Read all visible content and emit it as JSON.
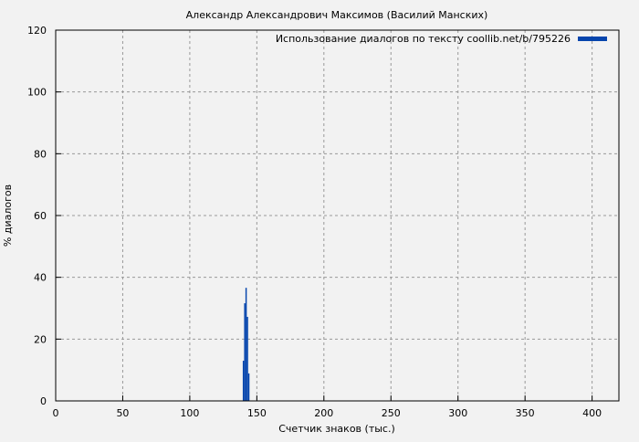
{
  "chart_data": {
    "type": "bar",
    "title": "Александр Александрович Максимов (Василий Манских)",
    "xlabel": "Счетчик знаков (тыс.)",
    "ylabel": "% диалогов",
    "xlim": [
      0,
      420
    ],
    "ylim": [
      0,
      120
    ],
    "xticks": [
      0,
      50,
      100,
      150,
      200,
      250,
      300,
      350,
      400
    ],
    "yticks": [
      0,
      20,
      40,
      60,
      80,
      100,
      120
    ],
    "grid": true,
    "legend_position": "top-right",
    "series": [
      {
        "name": "Использование диалогов по тексту coollib.net/b/795226",
        "color": "#0645ad",
        "x": [
          140,
          141,
          142,
          143,
          144
        ],
        "values": [
          13,
          31.6,
          36.6,
          27.2,
          8.9
        ]
      }
    ]
  }
}
